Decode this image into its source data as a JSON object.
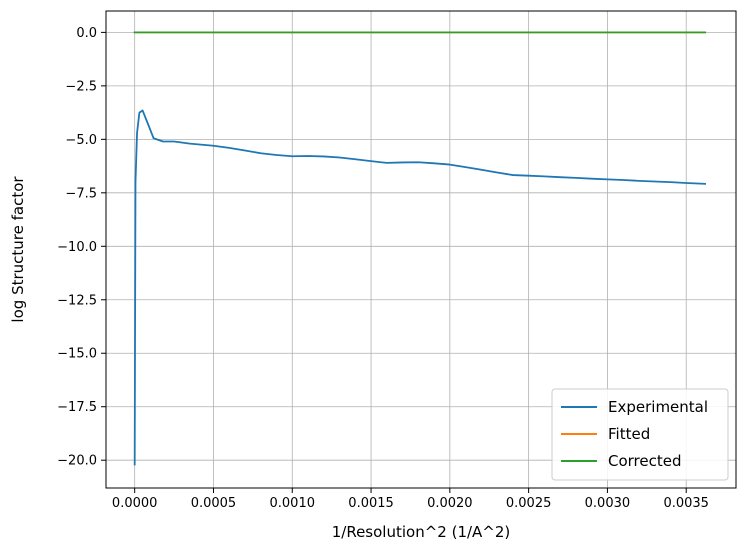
{
  "chart_data": {
    "type": "line",
    "title": "",
    "xlabel": "1/Resolution^2 (1/A^2)",
    "ylabel": "log Structure factor",
    "xlim": [
      -0.000182,
      0.003816
    ],
    "ylim": [
      -21.3,
      1.0
    ],
    "grid": true,
    "legend_position": "lower-right",
    "x_ticks": [
      {
        "value": 0.0,
        "label": "0.0000"
      },
      {
        "value": 0.0005,
        "label": "0.0005"
      },
      {
        "value": 0.001,
        "label": "0.0010"
      },
      {
        "value": 0.0015,
        "label": "0.0015"
      },
      {
        "value": 0.002,
        "label": "0.0020"
      },
      {
        "value": 0.0025,
        "label": "0.0025"
      },
      {
        "value": 0.003,
        "label": "0.0030"
      },
      {
        "value": 0.0035,
        "label": "0.0035"
      }
    ],
    "y_ticks": [
      {
        "value": 0.0,
        "label": "0.0"
      },
      {
        "value": -2.5,
        "label": "−2.5"
      },
      {
        "value": -5.0,
        "label": "−5.0"
      },
      {
        "value": -7.5,
        "label": "−7.5"
      },
      {
        "value": -10.0,
        "label": "−10.0"
      },
      {
        "value": -12.5,
        "label": "−12.5"
      },
      {
        "value": -15.0,
        "label": "−15.0"
      },
      {
        "value": -17.5,
        "label": "−17.5"
      },
      {
        "value": -20.0,
        "label": "−20.0"
      }
    ],
    "series": [
      {
        "name": "Experimental",
        "color": "#1f77b4",
        "x": [
          0.0,
          5e-06,
          1.5e-05,
          3e-05,
          5e-05,
          8e-05,
          0.00012,
          0.00018,
          0.00025,
          0.00035,
          0.0005,
          0.0006,
          0.0007,
          0.0008,
          0.0009,
          0.001,
          0.0011,
          0.0012,
          0.0013,
          0.0014,
          0.0015,
          0.0016,
          0.0017,
          0.0018,
          0.0019,
          0.002,
          0.0021,
          0.0022,
          0.0023,
          0.0024,
          0.0025,
          0.0026,
          0.0027,
          0.0028,
          0.0029,
          0.003,
          0.0031,
          0.0032,
          0.0033,
          0.0034,
          0.0035,
          0.00362
        ],
        "y": [
          -20.2,
          -7.0,
          -4.7,
          -3.75,
          -3.65,
          -4.2,
          -4.95,
          -5.1,
          -5.1,
          -5.2,
          -5.3,
          -5.4,
          -5.52,
          -5.65,
          -5.73,
          -5.79,
          -5.78,
          -5.8,
          -5.85,
          -5.93,
          -6.02,
          -6.1,
          -6.08,
          -6.07,
          -6.12,
          -6.18,
          -6.3,
          -6.42,
          -6.55,
          -6.67,
          -6.7,
          -6.73,
          -6.77,
          -6.8,
          -6.84,
          -6.87,
          -6.9,
          -6.94,
          -6.97,
          -7.0,
          -7.04,
          -7.08
        ]
      },
      {
        "name": "Fitted",
        "color": "#ff7f0e",
        "x": [
          0.0,
          0.00362
        ],
        "y": [
          0.0,
          0.0
        ]
      },
      {
        "name": "Corrected",
        "color": "#2ca02c",
        "x": [
          0.0,
          0.00362
        ],
        "y": [
          0.0,
          0.0
        ]
      }
    ]
  }
}
